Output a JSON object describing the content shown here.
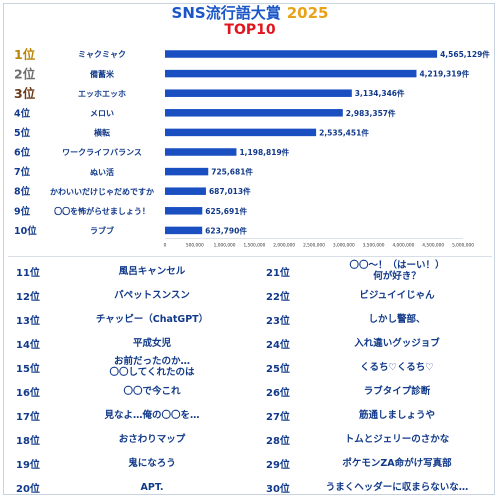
{
  "header": {
    "title": "SNS流行語大賞",
    "year": "2025",
    "subtitle": "TOP10"
  },
  "colors": {
    "bar": "#1a4fc2",
    "rank_text": "#123a8a",
    "title": "#1a56c8",
    "year": "#e8a21a",
    "subtitle": "#e0161e",
    "gold": "#b8860b",
    "silver": "#6e6e6e",
    "bronze": "#6b3a1a"
  },
  "chart_data": {
    "type": "bar",
    "orientation": "horizontal",
    "title": "SNS流行語大賞 2025",
    "subtitle": "TOP10",
    "xlim": [
      0,
      5000000
    ],
    "x_ticks": [
      "0",
      "500,000",
      "1,000,000",
      "1,500,000",
      "2,000,000",
      "2,500,000",
      "3,000,000",
      "3,500,000",
      "4,000,000",
      "4,500,000",
      "5,000,000"
    ],
    "grid": false,
    "ranks": [
      "1位",
      "2位",
      "3位",
      "4位",
      "5位",
      "6位",
      "7位",
      "8位",
      "9位",
      "10位"
    ],
    "categories": [
      "ミャクミャク",
      "備蓄米",
      "エッホエッホ",
      "メロい",
      "横転",
      "ワークライフバランス",
      "ぬい活",
      "かわいいだけじゃだめですか",
      "〇〇を怖がらせましょう！",
      "ラブブ"
    ],
    "values": [
      4565129,
      4219319,
      3134346,
      2983357,
      2535451,
      1198819,
      725681,
      687013,
      625691,
      623790
    ],
    "value_labels": [
      "4,565,129件",
      "4,219,319件",
      "3,134,346件",
      "2,983,357件",
      "2,535,451件",
      "1,198,819件",
      "725,681件",
      "687,013件",
      "625,691件",
      "623,790件"
    ]
  },
  "ranking": {
    "left": [
      {
        "rank": "11位",
        "term": "風呂キャンセル"
      },
      {
        "rank": "12位",
        "term": "パペットスンスン"
      },
      {
        "rank": "13位",
        "term": "チャッピー（ChatGPT）"
      },
      {
        "rank": "14位",
        "term": "平成女児"
      },
      {
        "rank": "15位",
        "term": "お前だったのか…\n〇〇してくれたのは"
      },
      {
        "rank": "16位",
        "term": "〇〇で今これ"
      },
      {
        "rank": "17位",
        "term": "見なよ…俺の〇〇を…"
      },
      {
        "rank": "18位",
        "term": "おさわりマップ"
      },
      {
        "rank": "19位",
        "term": "鬼になろう"
      },
      {
        "rank": "20位",
        "term": "APT."
      }
    ],
    "right": [
      {
        "rank": "21位",
        "term": "〇〇～！（はーい！）\n何が好き？"
      },
      {
        "rank": "22位",
        "term": "ビジュイイじゃん"
      },
      {
        "rank": "23位",
        "term": "しかし警部、"
      },
      {
        "rank": "24位",
        "term": "入れ違いグッジョブ"
      },
      {
        "rank": "25位",
        "term": "くるち♡くるち♡"
      },
      {
        "rank": "26位",
        "term": "ラブタイプ診断"
      },
      {
        "rank": "27位",
        "term": "筋通しましょうや"
      },
      {
        "rank": "28位",
        "term": "トムとジェリーのさかな"
      },
      {
        "rank": "29位",
        "term": "ポケモンZA命がけ写真部"
      },
      {
        "rank": "30位",
        "term": "うまくヘッダーに収まらないな…"
      }
    ]
  }
}
